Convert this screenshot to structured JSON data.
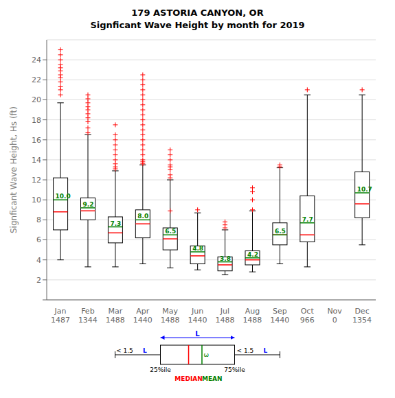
{
  "chart_data": {
    "type": "box",
    "title": "179   ASTORIA CANYON, OR",
    "subtitle": "Signficant Wave Height by month for 2019",
    "ylabel": "Signficant Wave Height, Hs (ft)",
    "categories": [
      "Jan",
      "Feb",
      "Mar",
      "Apr",
      "May",
      "Jun",
      "Jul",
      "Aug",
      "Sep",
      "Oct",
      "Nov",
      "Dec"
    ],
    "counts": [
      1487,
      1344,
      1488,
      1440,
      1488,
      1440,
      1488,
      1488,
      1440,
      966,
      0,
      1354
    ],
    "q1": [
      7.0,
      8.0,
      5.7,
      6.2,
      5.0,
      3.6,
      2.9,
      3.5,
      5.5,
      5.8,
      null,
      8.2
    ],
    "q3": [
      12.2,
      10.2,
      8.3,
      9.0,
      7.2,
      5.4,
      4.3,
      4.9,
      7.7,
      10.4,
      null,
      12.8
    ],
    "whisker_low": [
      4.0,
      3.3,
      3.3,
      3.6,
      3.2,
      3.0,
      2.5,
      2.8,
      3.6,
      3.3,
      null,
      5.5
    ],
    "whisker_high": [
      19.7,
      16.5,
      12.9,
      13.5,
      12.0,
      8.7,
      7.0,
      8.9,
      13.2,
      20.5,
      null,
      20.5
    ],
    "series": [
      {
        "name": "MEDIAN",
        "color": "red",
        "values": [
          8.8,
          8.9,
          6.7,
          7.6,
          6.1,
          4.4,
          3.5,
          4.0,
          6.5,
          6.5,
          null,
          9.6
        ]
      },
      {
        "name": "MEAN",
        "color": "green",
        "values": [
          10.0,
          9.2,
          7.3,
          8.0,
          6.5,
          4.8,
          3.8,
          4.2,
          6.5,
          7.7,
          null,
          10.7
        ],
        "value_labels": [
          "10.0",
          "9.2",
          "7.3",
          "8.0",
          "6.5",
          "4.8",
          "3.8",
          "4.2",
          "6.5",
          "7.7",
          null,
          "10.7"
        ]
      }
    ],
    "outliers": {
      "color": "red",
      "values": [
        [
          20.5,
          21.0,
          21.3,
          21.8,
          22.2,
          22.5,
          22.9,
          23.2,
          23.5,
          24.0,
          24.5,
          25.0
        ],
        [
          16.7,
          17.2,
          17.8,
          18.2,
          18.6,
          19.0,
          19.3,
          19.7,
          20.1,
          20.5
        ],
        [
          13.1,
          13.3,
          13.6,
          14.0,
          14.5,
          15.0,
          15.5,
          16.0,
          16.5,
          17.5
        ],
        [
          13.6,
          13.8,
          14.0,
          14.5,
          15.0,
          15.5,
          16.0,
          16.5,
          17.0,
          17.5,
          18.0,
          18.5,
          19.0,
          19.5,
          20.0,
          20.5,
          21.0,
          21.5,
          22.0,
          22.5
        ],
        [
          8.9,
          12.2,
          12.5,
          13.0,
          13.3,
          13.5,
          14.0,
          14.5,
          15.0
        ],
        [
          9.0
        ],
        [
          7.2,
          7.5,
          7.8
        ],
        [
          9.0,
          10.0,
          10.8,
          11.2
        ],
        [
          13.3,
          13.5
        ],
        [
          21.0
        ],
        [],
        [
          21.0
        ]
      ]
    },
    "data_labels": true,
    "ylim": [
      0,
      26
    ],
    "yticks": [
      {
        "value": 0,
        "label": null
      },
      2,
      4,
      6,
      8,
      10,
      12,
      14,
      16,
      18,
      20,
      22,
      24
    ],
    "grid": true,
    "annotations": {
      "q1": "25%ile",
      "q3": "75%ile",
      "whisker": "< 1.5",
      "iqr": "L",
      "iqr_color": "blue",
      "mean_symbol": "ω"
    }
  }
}
